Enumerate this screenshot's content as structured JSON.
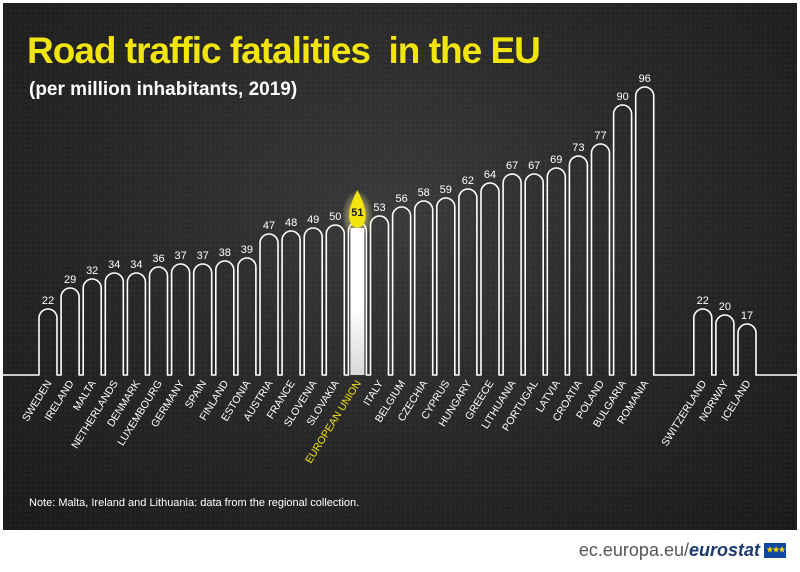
{
  "header": {
    "title": "Road traffic fatalities  in the EU",
    "subtitle": "(per million inhabitants, 2019)"
  },
  "note": "Note: Malta, Ireland and Lithuania: data from the regional collection.",
  "footer": {
    "domain": "ec.europa.eu/",
    "brand": "eurostat",
    "flag_icon": "eu-flag-icon"
  },
  "colors": {
    "background": "#262626",
    "outline": "#ffffff",
    "title": "#f2e40f",
    "highlight": "#f2e40f"
  },
  "chart_data": {
    "type": "bar",
    "title": "Road traffic fatalities  in the EU",
    "subtitle": "(per million inhabitants, 2019)",
    "xlabel": "",
    "ylabel": "",
    "ylim": [
      0,
      96
    ],
    "grid": false,
    "legend": "none",
    "highlight": "EUROPEAN UNION",
    "categories": [
      "SWEDEN",
      "IRELAND",
      "MALTA",
      "NETHERLANDS",
      "DENMARK",
      "LUXEMBOURG",
      "GERMANY",
      "SPAIN",
      "FINLAND",
      "ESTONIA",
      "AUSTRIA",
      "FRANCE",
      "SLOVENIA",
      "SLOVAKIA",
      "EUROPEAN UNION",
      "ITALY",
      "BELGIUM",
      "CZECHIA",
      "CYPRUS",
      "HUNGARY",
      "GREECE",
      "LITHUANIA",
      "PORTUGAL",
      "LATVIA",
      "CROATIA",
      "POLAND",
      "BULGARIA",
      "ROMANIA",
      "SWITZERLAND",
      "NORWAY",
      "ICELAND"
    ],
    "values": [
      22,
      29,
      32,
      34,
      34,
      36,
      37,
      37,
      38,
      39,
      47,
      48,
      49,
      50,
      51,
      53,
      56,
      58,
      59,
      62,
      64,
      67,
      67,
      69,
      73,
      77,
      90,
      96,
      22,
      20,
      17
    ]
  }
}
